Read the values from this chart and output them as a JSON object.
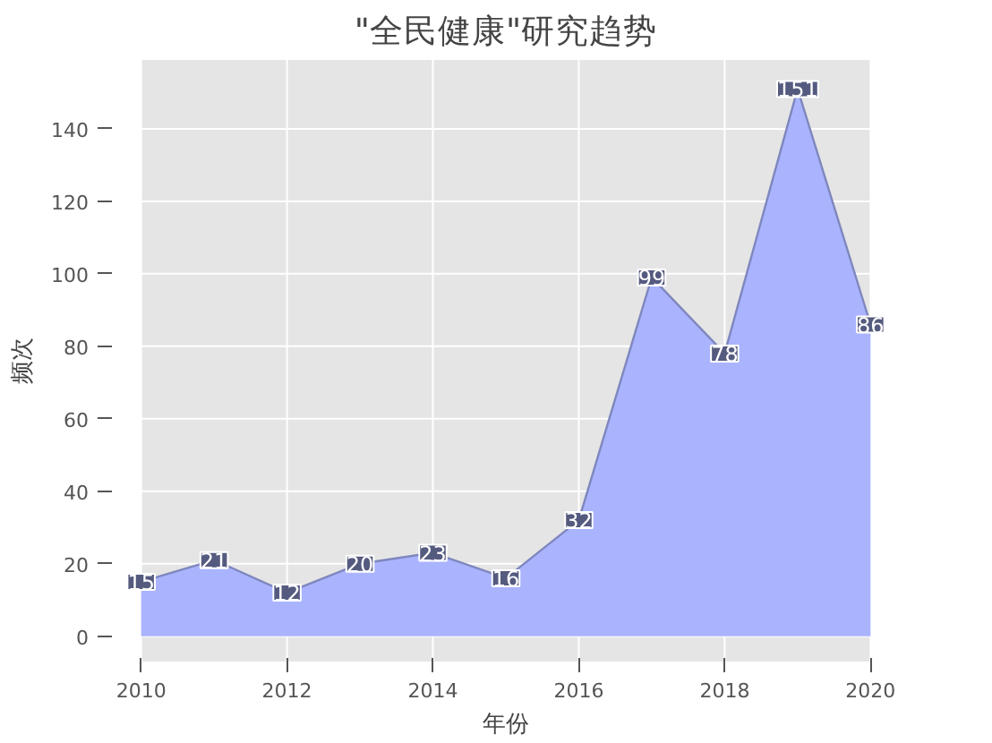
{
  "chart_data": {
    "type": "area",
    "title": "\"全民健康\"研究趋势",
    "xlabel": "年份",
    "ylabel": "频次",
    "x": [
      2010,
      2011,
      2012,
      2013,
      2014,
      2015,
      2016,
      2017,
      2018,
      2019,
      2020
    ],
    "series": [
      {
        "color": "#aab4fe",
        "values": [
          15,
          21,
          12,
          20,
          23,
          16,
          32,
          99,
          78,
          151,
          86
        ]
      }
    ],
    "xlim": [
      2010,
      2020
    ],
    "xticks": [
      2010,
      2012,
      2014,
      2016,
      2018,
      2020
    ],
    "ylim": [
      -7,
      159
    ],
    "yticks": [
      0,
      20,
      40,
      60,
      80,
      100,
      120,
      140
    ],
    "grid": true,
    "data_labels": true
  }
}
